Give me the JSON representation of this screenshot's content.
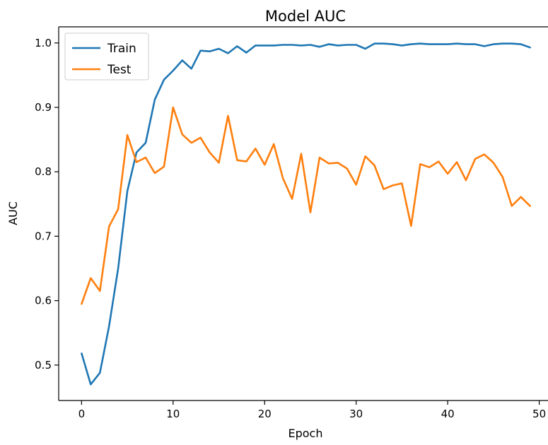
{
  "chart_data": {
    "type": "line",
    "title": "Model AUC",
    "xlabel": "Epoch",
    "ylabel": "AUC",
    "xlim": [
      -2.5,
      51.5
    ],
    "ylim": [
      0.445,
      1.025
    ],
    "xticks": [
      0,
      10,
      20,
      30,
      40,
      50
    ],
    "yticks": [
      0.5,
      0.6,
      0.7,
      0.8,
      0.9,
      1.0
    ],
    "xtick_labels": [
      "0",
      "10",
      "20",
      "30",
      "40",
      "50"
    ],
    "ytick_labels": [
      "0.5",
      "0.6",
      "0.7",
      "0.8",
      "0.9",
      "1.0"
    ],
    "grid": false,
    "legend_position": "top-left",
    "x": [
      0,
      1,
      2,
      3,
      4,
      5,
      6,
      7,
      8,
      9,
      10,
      11,
      12,
      13,
      14,
      15,
      16,
      17,
      18,
      19,
      20,
      21,
      22,
      23,
      24,
      25,
      26,
      27,
      28,
      29,
      30,
      31,
      32,
      33,
      34,
      35,
      36,
      37,
      38,
      39,
      40,
      41,
      42,
      43,
      44,
      45,
      46,
      47,
      48,
      49
    ],
    "series": [
      {
        "name": "Train",
        "color": "#1f77b4",
        "values": [
          0.518,
          0.47,
          0.488,
          0.56,
          0.65,
          0.77,
          0.83,
          0.845,
          0.912,
          0.943,
          0.957,
          0.973,
          0.96,
          0.988,
          0.987,
          0.991,
          0.984,
          0.995,
          0.985,
          0.996,
          0.996,
          0.996,
          0.997,
          0.997,
          0.996,
          0.997,
          0.994,
          0.998,
          0.996,
          0.997,
          0.997,
          0.991,
          0.999,
          0.999,
          0.998,
          0.996,
          0.998,
          0.999,
          0.998,
          0.998,
          0.998,
          0.999,
          0.998,
          0.998,
          0.995,
          0.998,
          0.999,
          0.999,
          0.998,
          0.993
        ]
      },
      {
        "name": "Test",
        "color": "#ff7f0e",
        "values": [
          0.595,
          0.635,
          0.615,
          0.715,
          0.742,
          0.857,
          0.815,
          0.822,
          0.798,
          0.808,
          0.9,
          0.858,
          0.845,
          0.853,
          0.83,
          0.814,
          0.887,
          0.818,
          0.816,
          0.836,
          0.811,
          0.843,
          0.79,
          0.758,
          0.828,
          0.737,
          0.822,
          0.813,
          0.814,
          0.805,
          0.78,
          0.824,
          0.81,
          0.773,
          0.779,
          0.782,
          0.716,
          0.812,
          0.807,
          0.816,
          0.797,
          0.815,
          0.787,
          0.82,
          0.827,
          0.814,
          0.792,
          0.747,
          0.761,
          0.747
        ]
      }
    ]
  }
}
